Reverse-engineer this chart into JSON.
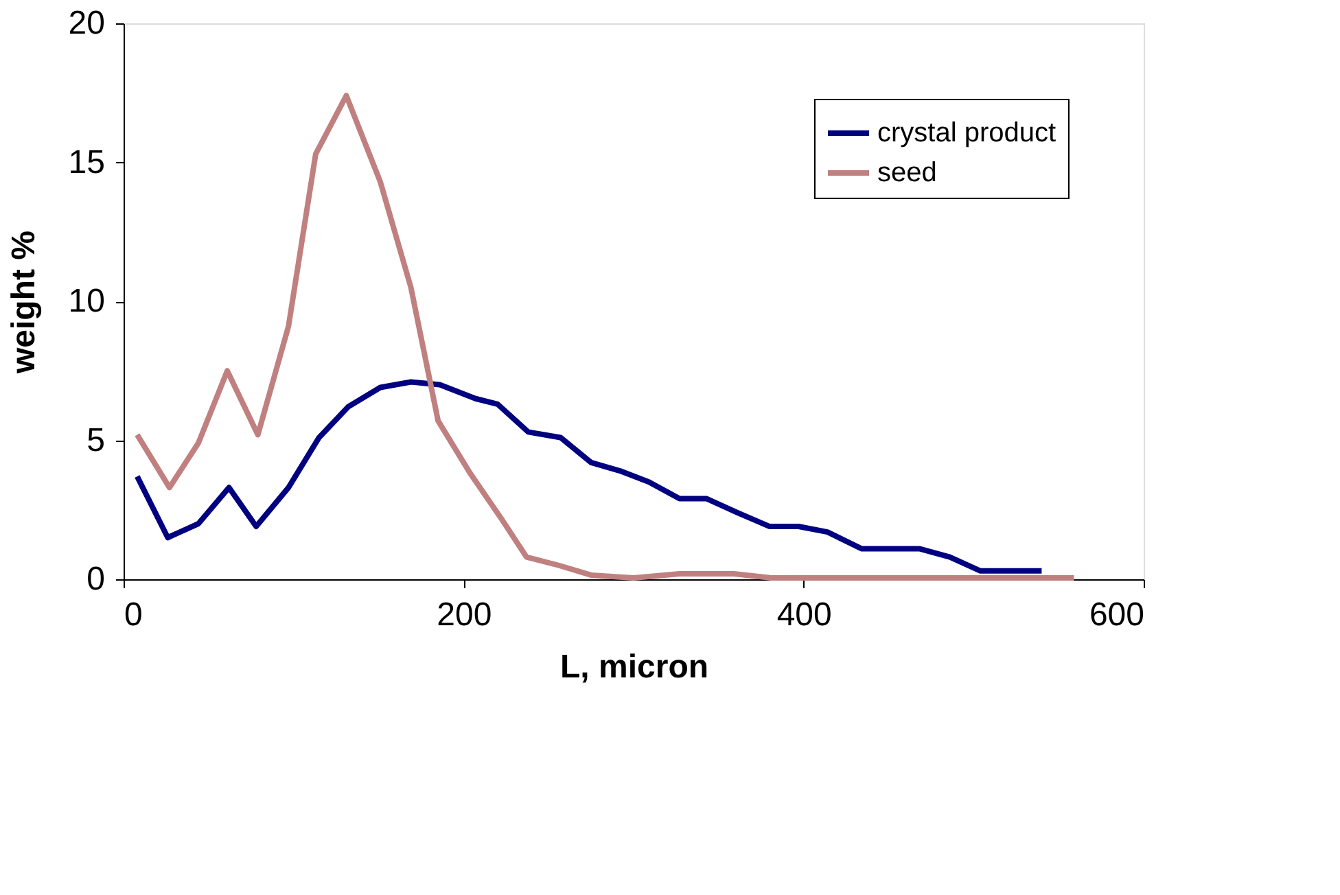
{
  "chart_data": {
    "type": "line",
    "xlabel": "L, micron",
    "ylabel": "weight %",
    "xlim": [
      0,
      600
    ],
    "xticks": [
      0,
      200,
      400,
      600
    ],
    "ylim": [
      0,
      20
    ],
    "yticks": [
      0,
      5,
      10,
      15,
      20
    ],
    "grid": false,
    "legend": "top right",
    "line_style": "solid",
    "marker": "none",
    "series": [
      {
        "name": "crystal product",
        "color": "#000080",
        "x": [
          8,
          26,
          44,
          62,
          78,
          97,
          115,
          132,
          151,
          169,
          186,
          207,
          220,
          238,
          257,
          275,
          292,
          309,
          327,
          343,
          361,
          380,
          397,
          414,
          434,
          468,
          486,
          504,
          540
        ],
        "values": [
          3.7,
          1.5,
          2.0,
          3.3,
          1.9,
          3.3,
          5.1,
          6.2,
          6.9,
          7.1,
          7.0,
          6.5,
          6.3,
          5.3,
          5.1,
          4.2,
          3.9,
          3.5,
          2.9,
          2.9,
          2.4,
          1.9,
          1.9,
          1.7,
          1.1,
          1.1,
          0.8,
          0.3,
          0.3
        ]
      },
      {
        "name": "seed",
        "color": "#c08080",
        "x": [
          8,
          27,
          44,
          61,
          79,
          97,
          113,
          131,
          151,
          169,
          185,
          204,
          222,
          237,
          256,
          275,
          300,
          327,
          359,
          381,
          420,
          470,
          520,
          559
        ],
        "values": [
          5.2,
          3.3,
          4.9,
          7.5,
          5.2,
          9.1,
          15.3,
          17.4,
          14.3,
          10.5,
          5.7,
          3.8,
          2.2,
          0.8,
          0.5,
          0.15,
          0.05,
          0.2,
          0.2,
          0.05,
          0.05,
          0.05,
          0.05,
          0.05
        ]
      }
    ]
  }
}
